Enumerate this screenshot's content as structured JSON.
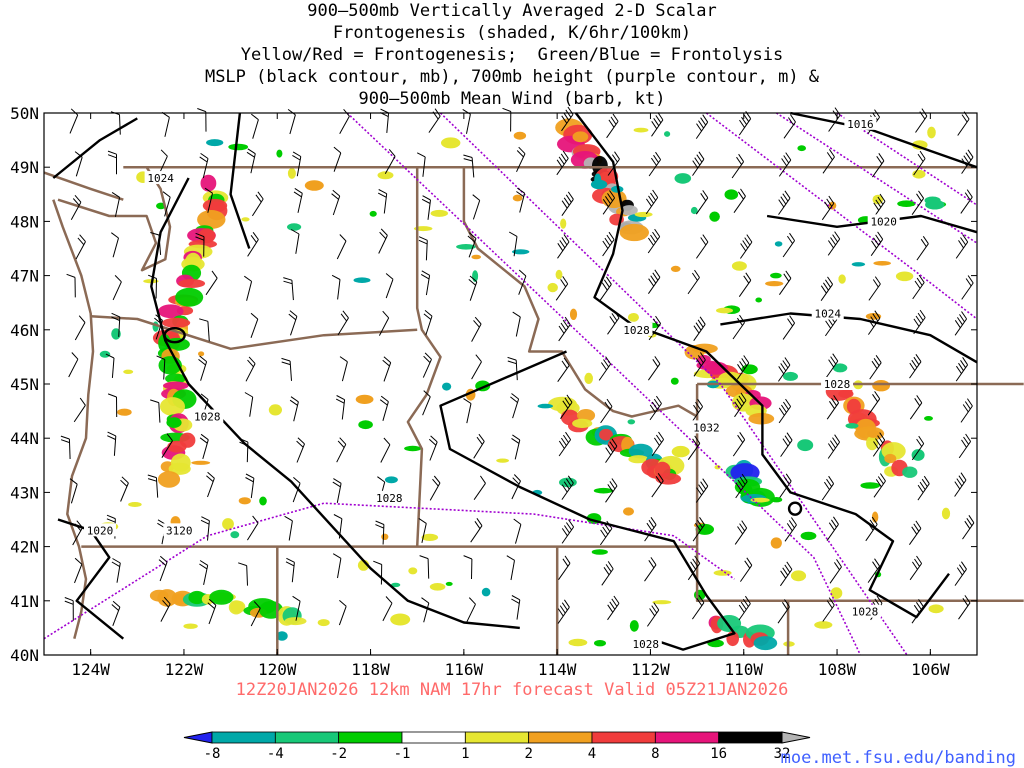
{
  "title_lines": [
    "900—500mb Vertically Averaged 2-D Scalar",
    "Frontogenesis (shaded, K/6hr/100km)",
    "Yellow/Red = Frontogenesis;  Green/Blue = Frontolysis",
    "MSLP (black contour, mb), 700mb height (purple contour, m) &",
    "900—500mb Mean Wind (barb, kt)"
  ],
  "valid_line": "12Z20JAN2026 12km NAM 17hr forecast Valid 05Z21JAN2026",
  "credit": "moe.met.fsu.edu/banding",
  "map": {
    "lon_range": [
      -125,
      -105
    ],
    "lat_range": [
      40,
      50
    ],
    "lon_ticks": [
      "124W",
      "122W",
      "120W",
      "118W",
      "116W",
      "114W",
      "112W",
      "110W",
      "108W",
      "106W"
    ],
    "lat_ticks": [
      "50N",
      "49N",
      "48N",
      "47N",
      "46N",
      "45N",
      "44N",
      "43N",
      "42N",
      "41N",
      "40N"
    ],
    "mslp_labels": [
      {
        "text": "1016",
        "lon": -107.5,
        "lat": 49.8
      },
      {
        "text": "1024",
        "lon": -122.5,
        "lat": 48.8
      },
      {
        "text": "1020",
        "lon": -107.0,
        "lat": 48.0
      },
      {
        "text": "1024",
        "lon": -108.2,
        "lat": 46.3
      },
      {
        "text": "1028",
        "lon": -112.3,
        "lat": 46.0
      },
      {
        "text": "1028",
        "lon": -108.0,
        "lat": 45.0
      },
      {
        "text": "1032",
        "lon": -110.8,
        "lat": 44.2
      },
      {
        "text": "1028",
        "lon": -121.5,
        "lat": 44.4
      },
      {
        "text": "1028",
        "lon": -117.6,
        "lat": 42.9
      },
      {
        "text": "1020",
        "lon": -123.8,
        "lat": 42.3
      },
      {
        "text": "1028",
        "lon": -107.4,
        "lat": 40.8
      },
      {
        "text": "1028",
        "lon": -112.1,
        "lat": 40.2
      }
    ],
    "height_labels": [
      {
        "text": "3120",
        "lon": -122.1,
        "lat": 42.3
      }
    ]
  },
  "colorbar": {
    "tick_labels": [
      "-8",
      "-4",
      "-2",
      "-1",
      "1",
      "2",
      "4",
      "8",
      "16",
      "32"
    ],
    "colors": [
      "#2222ee",
      "#00a8a8",
      "#18c878",
      "#00cc00",
      "#ffffff",
      "#e6e632",
      "#f0a020",
      "#f03c3c",
      "#e6147a",
      "#000000",
      "#b4b4b4"
    ]
  },
  "colors": {
    "state_border": "#8b6a55",
    "mslp": "#000000",
    "height": "#a000d0",
    "valid_text": "#ff6a6a",
    "credit_text": "#4060ff"
  }
}
